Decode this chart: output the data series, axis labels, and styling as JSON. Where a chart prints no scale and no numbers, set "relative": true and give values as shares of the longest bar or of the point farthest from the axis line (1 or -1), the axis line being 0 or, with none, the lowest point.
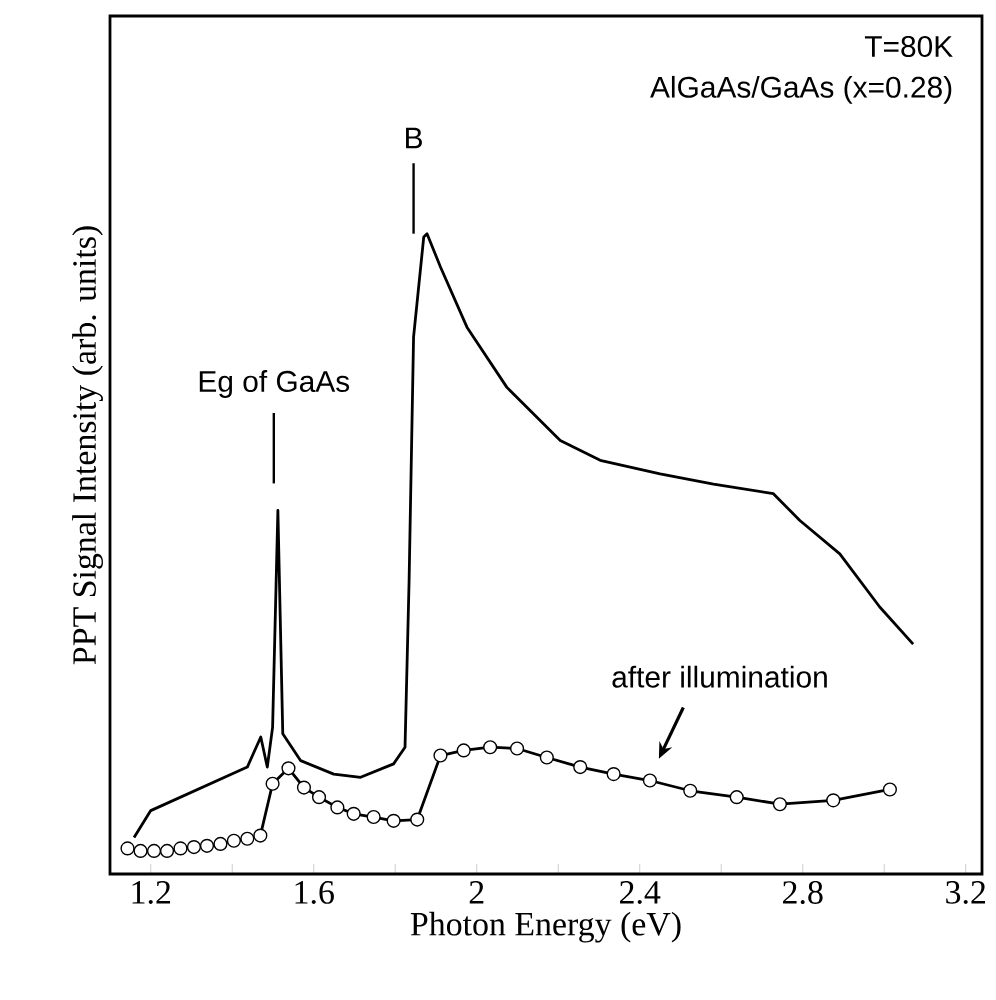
{
  "chart_data": {
    "type": "line",
    "relative": true,
    "xlabel": "Photon Energy (eV)",
    "ylabel": "PPT Signal Intensity (arb. units)",
    "xlim": [
      1.1,
      3.24
    ],
    "xticks": [
      1.2,
      {
        "value": 1.4,
        "label": null
      },
      1.6,
      {
        "value": 1.8,
        "label": null
      },
      2,
      {
        "value": 2.2,
        "label": null
      },
      2.4,
      {
        "value": 2.6,
        "label": null
      },
      2.8,
      {
        "value": 3.0,
        "label": null
      },
      3.2
    ],
    "tick_labels": "x",
    "grid": false,
    "line_style": "solid",
    "series": [
      {
        "color": "#000000",
        "marker": "none",
        "x": [
          1.159,
          1.2,
          1.437,
          1.47,
          1.486,
          1.499,
          1.512,
          1.524,
          1.568,
          1.649,
          1.715,
          1.796,
          1.824,
          1.834,
          1.845,
          1.87,
          1.878,
          1.911,
          1.976,
          2.074,
          2.205,
          2.303,
          2.45,
          2.581,
          2.728,
          2.793,
          2.891,
          2.989,
          3.071
        ],
        "values": [
          0.057,
          0.099,
          0.167,
          0.214,
          0.167,
          0.229,
          0.568,
          0.219,
          0.177,
          0.156,
          0.151,
          0.172,
          0.198,
          0.458,
          0.839,
          0.995,
          1.0,
          0.948,
          0.854,
          0.76,
          0.677,
          0.646,
          0.625,
          0.609,
          0.594,
          0.552,
          0.5,
          0.417,
          0.359
        ]
      },
      {
        "color": "#000000",
        "marker": "circle",
        "x": [
          1.143,
          1.175,
          1.208,
          1.24,
          1.273,
          1.306,
          1.338,
          1.371,
          1.404,
          1.437,
          1.469,
          1.499,
          1.538,
          1.576,
          1.613,
          1.658,
          1.698,
          1.747,
          1.796,
          1.854,
          1.911,
          1.968,
          2.033,
          2.099,
          2.172,
          2.254,
          2.336,
          2.425,
          2.524,
          2.638,
          2.744,
          2.875,
          3.014
        ],
        "values": [
          0.04,
          0.036,
          0.036,
          0.036,
          0.04,
          0.042,
          0.044,
          0.047,
          0.052,
          0.055,
          0.06,
          0.141,
          0.165,
          0.135,
          0.12,
          0.104,
          0.094,
          0.089,
          0.083,
          0.085,
          0.185,
          0.193,
          0.198,
          0.196,
          0.182,
          0.167,
          0.156,
          0.146,
          0.13,
          0.12,
          0.109,
          0.115,
          0.132
        ]
      }
    ],
    "annotations": [
      "T=80K",
      "AlGaAs/GaAs (x=0.28)",
      "Eg of GaAs",
      "B",
      "after illumination"
    ]
  }
}
